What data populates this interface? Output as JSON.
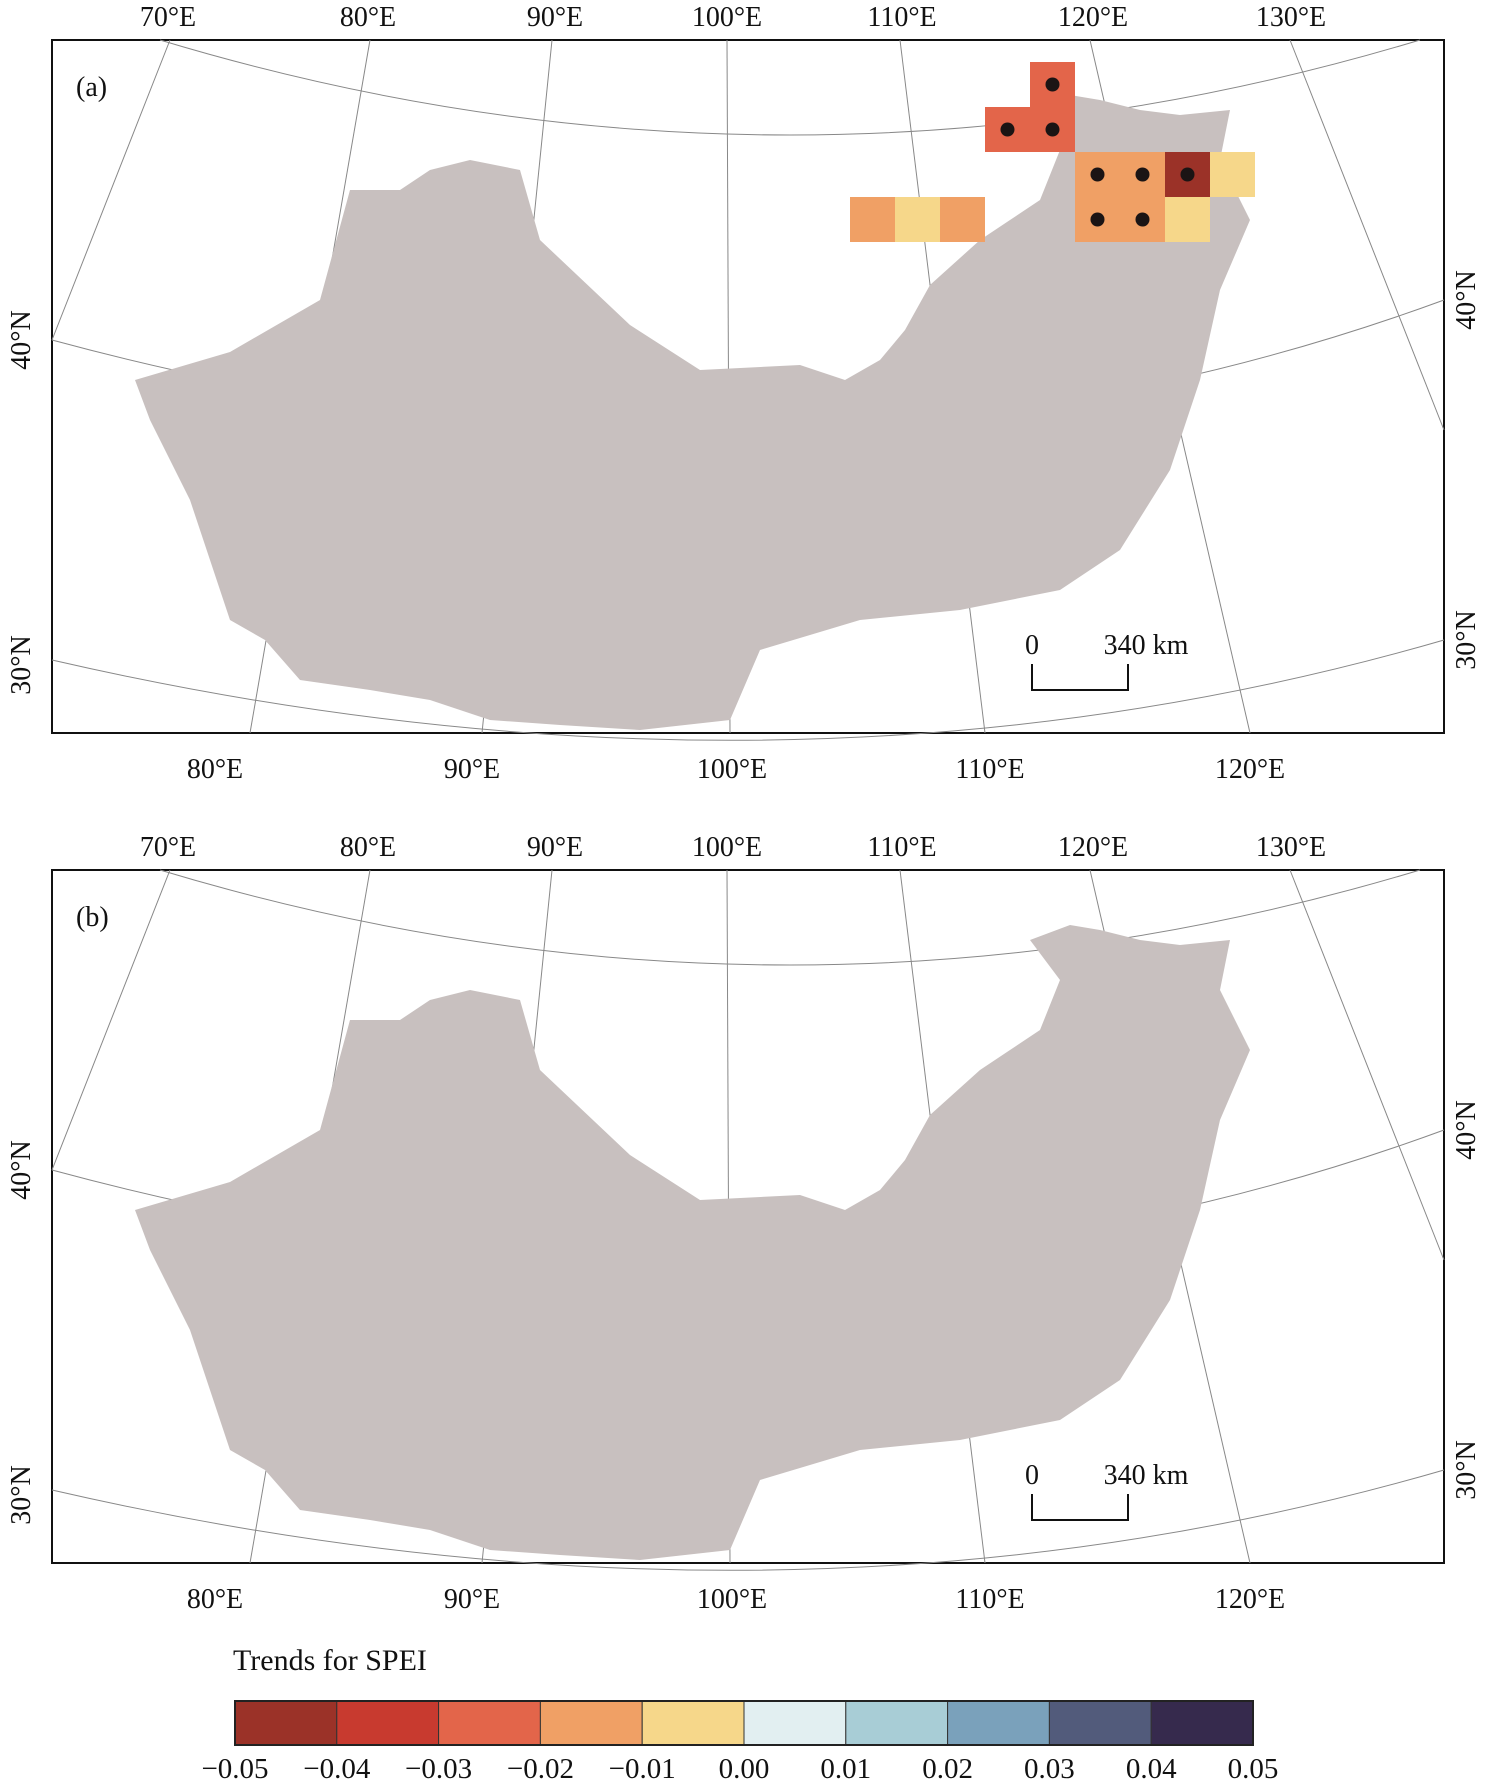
{
  "panels": [
    {
      "label": "(a)",
      "top_lon_labels": [
        "70°E",
        "80°E",
        "90°E",
        "100°E",
        "110°E",
        "120°E",
        "130°E"
      ],
      "bottom_lon_labels": [
        "80°E",
        "90°E",
        "100°E",
        "110°E",
        "120°E"
      ],
      "lat_labels": [
        "40°N",
        "30°N"
      ],
      "scale": {
        "zero": "0",
        "distance": "340 km"
      },
      "cells": [
        {
          "c": 8,
          "r": 0,
          "v": -0.025,
          "sig": true
        },
        {
          "c": 7,
          "r": 1,
          "v": -0.025,
          "sig": true
        },
        {
          "c": 8,
          "r": 1,
          "v": -0.025,
          "sig": true
        },
        {
          "c": 9,
          "r": 2,
          "v": -0.015,
          "sig": true
        },
        {
          "c": 10,
          "r": 2,
          "v": -0.015,
          "sig": true
        },
        {
          "c": 11,
          "r": 2,
          "v": -0.045,
          "sig": true
        },
        {
          "c": 12,
          "r": 2,
          "v": -0.005,
          "sig": false
        },
        {
          "c": 9,
          "r": 3,
          "v": -0.015,
          "sig": true
        },
        {
          "c": 10,
          "r": 3,
          "v": -0.015,
          "sig": true
        },
        {
          "c": 11,
          "r": 3,
          "v": -0.005,
          "sig": false
        },
        {
          "c": 4,
          "r": 3,
          "v": -0.015,
          "sig": false
        },
        {
          "c": 5,
          "r": 3,
          "v": -0.005,
          "sig": false
        },
        {
          "c": 6,
          "r": 3,
          "v": -0.015,
          "sig": false
        }
      ]
    },
    {
      "label": "(b)",
      "top_lon_labels": [
        "70°E",
        "80°E",
        "90°E",
        "100°E",
        "110°E",
        "120°E",
        "130°E"
      ],
      "bottom_lon_labels": [
        "80°E",
        "90°E",
        "100°E",
        "110°E",
        "120°E"
      ],
      "lat_labels": [
        "40°N",
        "30°N"
      ],
      "scale": {
        "zero": "0",
        "distance": "340 km"
      },
      "cells": []
    }
  ],
  "colorbar": {
    "title": "Trends for SPEI",
    "tick_labels": [
      "−0.05",
      "−0.04",
      "−0.03",
      "−0.02",
      "−0.01",
      "0.00",
      "0.01",
      "0.02",
      "0.03",
      "0.04",
      "0.05"
    ],
    "colors": [
      "#9b3228",
      "#c83a2f",
      "#e3654a",
      "#f0a065",
      "#f6d78a",
      "#e2eff1",
      "#a8cdd6",
      "#7aa1bb",
      "#525b7b",
      "#362a4d"
    ]
  },
  "land_color": "#c8c0bf",
  "dot_color": "#1b1414"
}
